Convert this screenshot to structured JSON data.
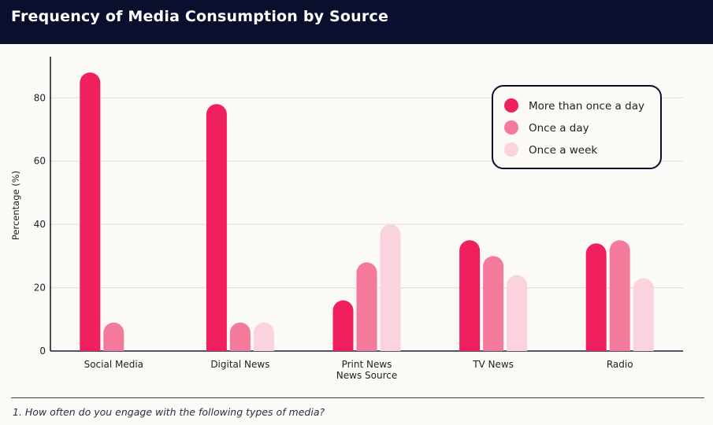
{
  "header": {
    "title": "Frequency of Media Consumption by Source"
  },
  "footnote": "1. How often do you engage with the following types of media?",
  "colors": {
    "background": "#fcfaf7",
    "header": "#0a0f2e",
    "series": [
      "#f0205e",
      "#f47a9c",
      "#fbd3de"
    ]
  },
  "chart_data": {
    "type": "bar",
    "title": "Frequency of Media Consumption by Source",
    "xlabel": "",
    "ylabel": "Percentage (%)",
    "ylim": [
      0,
      92
    ],
    "yticks": [
      0,
      20,
      40,
      60,
      80
    ],
    "grid": true,
    "legend_position": "top-right",
    "categories": [
      "Social Media",
      "Digital News",
      "Print News\nNews Source",
      "TV News",
      "Radio"
    ],
    "series": [
      {
        "name": "More than once a day",
        "values": [
          88,
          78,
          16,
          35,
          34
        ]
      },
      {
        "name": "Once a day",
        "values": [
          9,
          9,
          28,
          30,
          35
        ]
      },
      {
        "name": "Once a week",
        "values": [
          0,
          9,
          40,
          24,
          23
        ]
      }
    ]
  }
}
